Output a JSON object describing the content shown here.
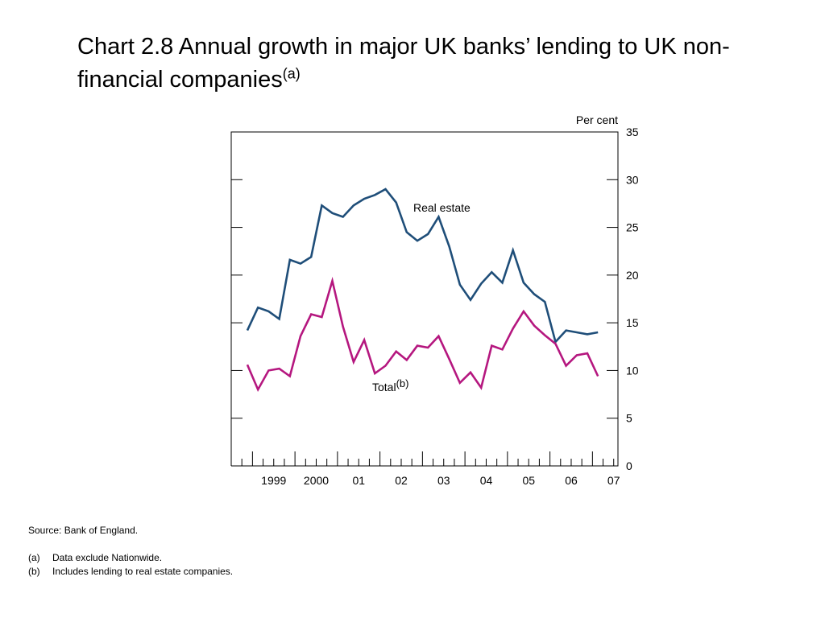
{
  "title": {
    "main": "Chart 2.8  Annual growth in major UK banks’ lending to UK non-financial companies",
    "sup": "(a)"
  },
  "footer": {
    "source": "Source:  Bank of England.",
    "notes": [
      {
        "mark": "(a)",
        "text": "Data exclude Nationwide."
      },
      {
        "mark": "(b)",
        "text": "Includes lending to real estate companies."
      }
    ]
  },
  "chart_data": {
    "type": "line",
    "unit_label": "Per cent",
    "ylim": [
      0,
      35
    ],
    "yticks": [
      0,
      5,
      10,
      15,
      20,
      25,
      30,
      35
    ],
    "xlim": [
      1998.5,
      2007.6
    ],
    "year_labels": [
      {
        "label": "1999",
        "year": 1999
      },
      {
        "label": "2000",
        "year": 2000
      },
      {
        "label": "01",
        "year": 2001
      },
      {
        "label": "02",
        "year": 2002
      },
      {
        "label": "03",
        "year": 2003
      },
      {
        "label": "04",
        "year": 2004
      },
      {
        "label": "05",
        "year": 2005
      },
      {
        "label": "06",
        "year": 2006
      },
      {
        "label": "07",
        "year": 2007
      }
    ],
    "grid": false,
    "series": [
      {
        "name": "Real estate",
        "name_sup": "",
        "color": "#1f4e79",
        "x": [
          1998.88,
          1999.13,
          1999.38,
          1999.63,
          1999.88,
          2000.13,
          2000.38,
          2000.63,
          2000.88,
          2001.13,
          2001.38,
          2001.63,
          2001.88,
          2002.13,
          2002.38,
          2002.63,
          2002.88,
          2003.13,
          2003.38,
          2003.63,
          2003.88,
          2004.13,
          2004.38,
          2004.63,
          2004.88,
          2005.13,
          2005.38,
          2005.63,
          2005.88,
          2006.13,
          2006.38,
          2006.63,
          2006.88,
          2007.13
        ],
        "values": [
          14.2,
          16.6,
          16.2,
          15.4,
          21.6,
          21.2,
          21.9,
          27.3,
          26.5,
          26.1,
          27.3,
          28.0,
          28.4,
          29.0,
          27.6,
          24.5,
          23.6,
          24.3,
          26.1,
          23.0,
          19.0,
          17.4,
          19.1,
          20.3,
          19.2,
          22.6,
          19.2,
          18.0,
          17.2,
          13.0,
          14.2,
          14.0,
          13.8,
          14.0
        ]
      },
      {
        "name": "Total",
        "name_sup": "(b)",
        "color": "#b5177f",
        "x": [
          1998.88,
          1999.13,
          1999.38,
          1999.63,
          1999.88,
          2000.13,
          2000.38,
          2000.63,
          2000.88,
          2001.13,
          2001.38,
          2001.63,
          2001.88,
          2002.13,
          2002.38,
          2002.63,
          2002.88,
          2003.13,
          2003.38,
          2003.63,
          2003.88,
          2004.13,
          2004.38,
          2004.63,
          2004.88,
          2005.13,
          2005.38,
          2005.63,
          2005.88,
          2006.13,
          2006.38,
          2006.63,
          2006.88,
          2007.13
        ],
        "values": [
          10.6,
          8.0,
          10.0,
          10.2,
          9.4,
          13.6,
          15.9,
          15.6,
          19.4,
          14.6,
          10.9,
          13.2,
          9.7,
          10.5,
          12.0,
          11.1,
          12.6,
          12.4,
          13.6,
          11.2,
          8.7,
          9.8,
          8.2,
          12.6,
          12.2,
          14.4,
          16.2,
          14.7,
          13.7,
          12.8,
          10.5,
          11.6,
          11.8,
          9.4
        ]
      }
    ]
  }
}
